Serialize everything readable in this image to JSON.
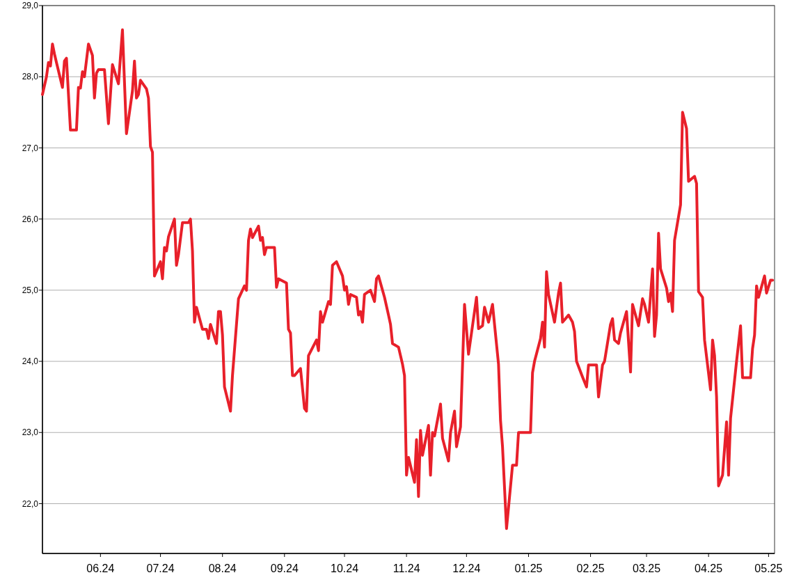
{
  "chart_data": {
    "type": "line",
    "x": [
      "2024-05-03",
      "2024-05-05",
      "2024-05-06",
      "2024-05-07",
      "2024-05-08",
      "2024-05-09",
      "2024-05-10",
      "2024-05-13",
      "2024-05-14",
      "2024-05-15",
      "2024-05-17",
      "2024-05-20",
      "2024-05-21",
      "2024-05-22",
      "2024-05-23",
      "2024-05-24",
      "2024-05-26",
      "2024-05-28",
      "2024-05-29",
      "2024-05-30",
      "2024-05-31",
      "2024-06-03",
      "2024-06-05",
      "2024-06-07",
      "2024-06-10",
      "2024-06-12",
      "2024-06-14",
      "2024-06-17",
      "2024-06-18",
      "2024-06-19",
      "2024-06-20",
      "2024-06-21",
      "2024-06-24",
      "2024-06-25",
      "2024-06-26",
      "2024-06-27",
      "2024-06-28",
      "2024-07-01",
      "2024-07-02",
      "2024-07-03",
      "2024-07-04",
      "2024-07-05",
      "2024-07-08",
      "2024-07-09",
      "2024-07-10",
      "2024-07-12",
      "2024-07-15",
      "2024-07-16",
      "2024-07-17",
      "2024-07-18",
      "2024-07-19",
      "2024-07-22",
      "2024-07-24",
      "2024-07-25",
      "2024-07-26",
      "2024-07-29",
      "2024-07-30",
      "2024-07-31",
      "2024-08-01",
      "2024-08-02",
      "2024-08-05",
      "2024-08-06",
      "2024-08-09",
      "2024-08-12",
      "2024-08-13",
      "2024-08-14",
      "2024-08-15",
      "2024-08-16",
      "2024-08-19",
      "2024-08-20",
      "2024-08-21",
      "2024-08-22",
      "2024-08-23",
      "2024-08-27",
      "2024-08-28",
      "2024-08-29",
      "2024-09-02",
      "2024-09-03",
      "2024-09-04",
      "2024-09-05",
      "2024-09-06",
      "2024-09-09",
      "2024-09-11",
      "2024-09-12",
      "2024-09-13",
      "2024-09-17",
      "2024-09-18",
      "2024-09-19",
      "2024-09-20",
      "2024-09-23",
      "2024-09-24",
      "2024-09-25",
      "2024-09-27",
      "2024-09-30",
      "2024-10-01",
      "2024-10-02",
      "2024-10-03",
      "2024-10-04",
      "2024-10-07",
      "2024-10-08",
      "2024-10-09",
      "2024-10-10",
      "2024-10-11",
      "2024-10-14",
      "2024-10-16",
      "2024-10-17",
      "2024-10-18",
      "2024-10-21",
      "2024-10-23",
      "2024-10-24",
      "2024-10-25",
      "2024-10-28",
      "2024-10-30",
      "2024-10-31",
      "2024-11-01",
      "2024-11-02",
      "2024-11-05",
      "2024-11-06",
      "2024-11-07",
      "2024-11-08",
      "2024-11-09",
      "2024-11-12",
      "2024-11-13",
      "2024-11-14",
      "2024-11-15",
      "2024-11-18",
      "2024-11-19",
      "2024-11-22",
      "2024-11-23",
      "2024-11-25",
      "2024-11-26",
      "2024-11-28",
      "2024-11-30",
      "2024-12-02",
      "2024-12-06",
      "2024-12-07",
      "2024-12-09",
      "2024-12-10",
      "2024-12-12",
      "2024-12-14",
      "2024-12-17",
      "2024-12-18",
      "2024-12-19",
      "2024-12-21",
      "2024-12-24",
      "2024-12-26",
      "2024-12-27",
      "2025-01-02",
      "2025-01-03",
      "2025-01-04",
      "2025-01-07",
      "2025-01-08",
      "2025-01-09",
      "2025-01-10",
      "2025-01-11",
      "2025-01-14",
      "2025-01-16",
      "2025-01-17",
      "2025-01-18",
      "2025-01-21",
      "2025-01-23",
      "2025-01-24",
      "2025-01-25",
      "2025-01-28",
      "2025-01-30",
      "2025-01-31",
      "2025-02-04",
      "2025-02-05",
      "2025-02-07",
      "2025-02-08",
      "2025-02-11",
      "2025-02-12",
      "2025-02-13",
      "2025-02-15",
      "2025-02-16",
      "2025-02-19",
      "2025-02-21",
      "2025-02-22",
      "2025-02-25",
      "2025-02-27",
      "2025-02-28",
      "2025-03-02",
      "2025-03-04",
      "2025-03-05",
      "2025-03-06",
      "2025-03-07",
      "2025-03-08",
      "2025-03-11",
      "2025-03-12",
      "2025-03-13",
      "2025-03-14",
      "2025-03-15",
      "2025-03-18",
      "2025-03-19",
      "2025-03-21",
      "2025-03-22",
      "2025-03-25",
      "2025-03-26",
      "2025-03-27",
      "2025-03-29",
      "2025-03-30",
      "2025-04-02",
      "2025-04-03",
      "2025-04-04",
      "2025-04-05",
      "2025-04-06",
      "2025-04-08",
      "2025-04-10",
      "2025-04-11",
      "2025-04-12",
      "2025-04-15",
      "2025-04-17",
      "2025-04-18",
      "2025-04-22",
      "2025-04-23",
      "2025-04-24",
      "2025-04-25",
      "2025-04-26",
      "2025-04-29",
      "2025-04-30",
      "2025-05-02",
      "2025-05-03"
    ],
    "series": [
      {
        "color": "#e8202a",
        "values": [
          27.75,
          28.0,
          28.2,
          28.15,
          28.46,
          28.32,
          28.2,
          27.85,
          28.22,
          28.26,
          27.25,
          27.25,
          27.85,
          27.84,
          28.07,
          28.0,
          28.46,
          28.3,
          27.7,
          28.05,
          28.1,
          28.1,
          27.34,
          28.17,
          27.9,
          28.66,
          27.2,
          27.8,
          28.22,
          27.7,
          27.75,
          27.95,
          27.83,
          27.7,
          27.02,
          26.94,
          25.2,
          25.4,
          25.16,
          25.6,
          25.55,
          25.75,
          26.0,
          25.35,
          25.5,
          25.95,
          25.95,
          26.0,
          25.55,
          24.55,
          24.76,
          24.45,
          24.45,
          24.32,
          24.52,
          24.25,
          24.7,
          24.7,
          24.37,
          23.64,
          23.3,
          23.8,
          24.88,
          25.06,
          25.0,
          25.7,
          25.86,
          25.74,
          25.9,
          25.7,
          25.74,
          25.5,
          25.6,
          25.6,
          25.04,
          25.16,
          25.1,
          24.45,
          24.4,
          23.8,
          23.8,
          23.9,
          23.34,
          23.3,
          24.08,
          24.3,
          24.15,
          24.7,
          24.55,
          24.84,
          24.8,
          25.35,
          25.4,
          25.2,
          25.0,
          25.05,
          24.8,
          24.94,
          24.9,
          24.65,
          24.7,
          24.55,
          24.94,
          25.0,
          24.84,
          25.16,
          25.2,
          24.9,
          24.65,
          24.52,
          24.25,
          24.2,
          23.96,
          23.8,
          22.4,
          22.65,
          22.3,
          22.9,
          22.1,
          23.03,
          22.68,
          23.1,
          22.4,
          23.0,
          22.95,
          23.4,
          22.92,
          22.6,
          23.0,
          23.3,
          22.8,
          23.08,
          24.8,
          24.1,
          24.9,
          24.46,
          24.5,
          24.76,
          24.55,
          24.8,
          23.96,
          23.17,
          22.8,
          21.65,
          22.54,
          22.54,
          23.0,
          23.0,
          23.84,
          24.0,
          24.32,
          24.55,
          24.2,
          25.26,
          24.94,
          24.55,
          24.96,
          25.1,
          24.55,
          24.65,
          24.55,
          24.42,
          24.0,
          23.78,
          23.64,
          23.95,
          23.95,
          23.5,
          23.95,
          24.0,
          24.52,
          24.6,
          24.3,
          24.25,
          24.4,
          24.7,
          23.85,
          24.8,
          24.5,
          24.88,
          24.8,
          24.55,
          25.3,
          24.35,
          24.65,
          25.8,
          25.3,
          25.03,
          24.84,
          24.96,
          24.7,
          25.7,
          26.2,
          27.5,
          27.27,
          26.53,
          26.6,
          26.5,
          24.98,
          24.9,
          24.3,
          23.6,
          24.3,
          24.08,
          23.5,
          22.25,
          22.4,
          23.15,
          22.4,
          23.2,
          24.0,
          24.5,
          23.77,
          23.77,
          24.18,
          24.37,
          25.06,
          24.9,
          25.2,
          24.96,
          25.14,
          25.14
        ]
      }
    ],
    "xlim": [
      "2024-05-03",
      "2025-05-04"
    ],
    "xticks": [
      {
        "value": "2024-06-01",
        "label": "06.24"
      },
      {
        "value": "2024-07-01",
        "label": "07.24"
      },
      {
        "value": "2024-08-01",
        "label": "08.24"
      },
      {
        "value": "2024-09-01",
        "label": "09.24"
      },
      {
        "value": "2024-10-01",
        "label": "10.24"
      },
      {
        "value": "2024-11-01",
        "label": "11.24"
      },
      {
        "value": "2024-12-01",
        "label": "12.24"
      },
      {
        "value": "2025-01-01",
        "label": "01.25"
      },
      {
        "value": "2025-02-01",
        "label": "02.25"
      },
      {
        "value": "2025-03-01",
        "label": "03.25"
      },
      {
        "value": "2025-04-01",
        "label": "04.25"
      },
      {
        "value": "2025-05-01",
        "label": "05.25"
      }
    ],
    "ylim": [
      21.3,
      29.0
    ],
    "yticks": [
      {
        "value": 22,
        "label": "22,0"
      },
      {
        "value": 23,
        "label": "23,0"
      },
      {
        "value": 24,
        "label": "24,0"
      },
      {
        "value": 25,
        "label": "25,0"
      },
      {
        "value": 26,
        "label": "26,0"
      },
      {
        "value": 27,
        "label": "27,0"
      },
      {
        "value": 28,
        "label": "28,0"
      },
      {
        "value": 29,
        "label": "29,0"
      }
    ],
    "grid": "y",
    "marker": "none",
    "line_style": "solid"
  }
}
